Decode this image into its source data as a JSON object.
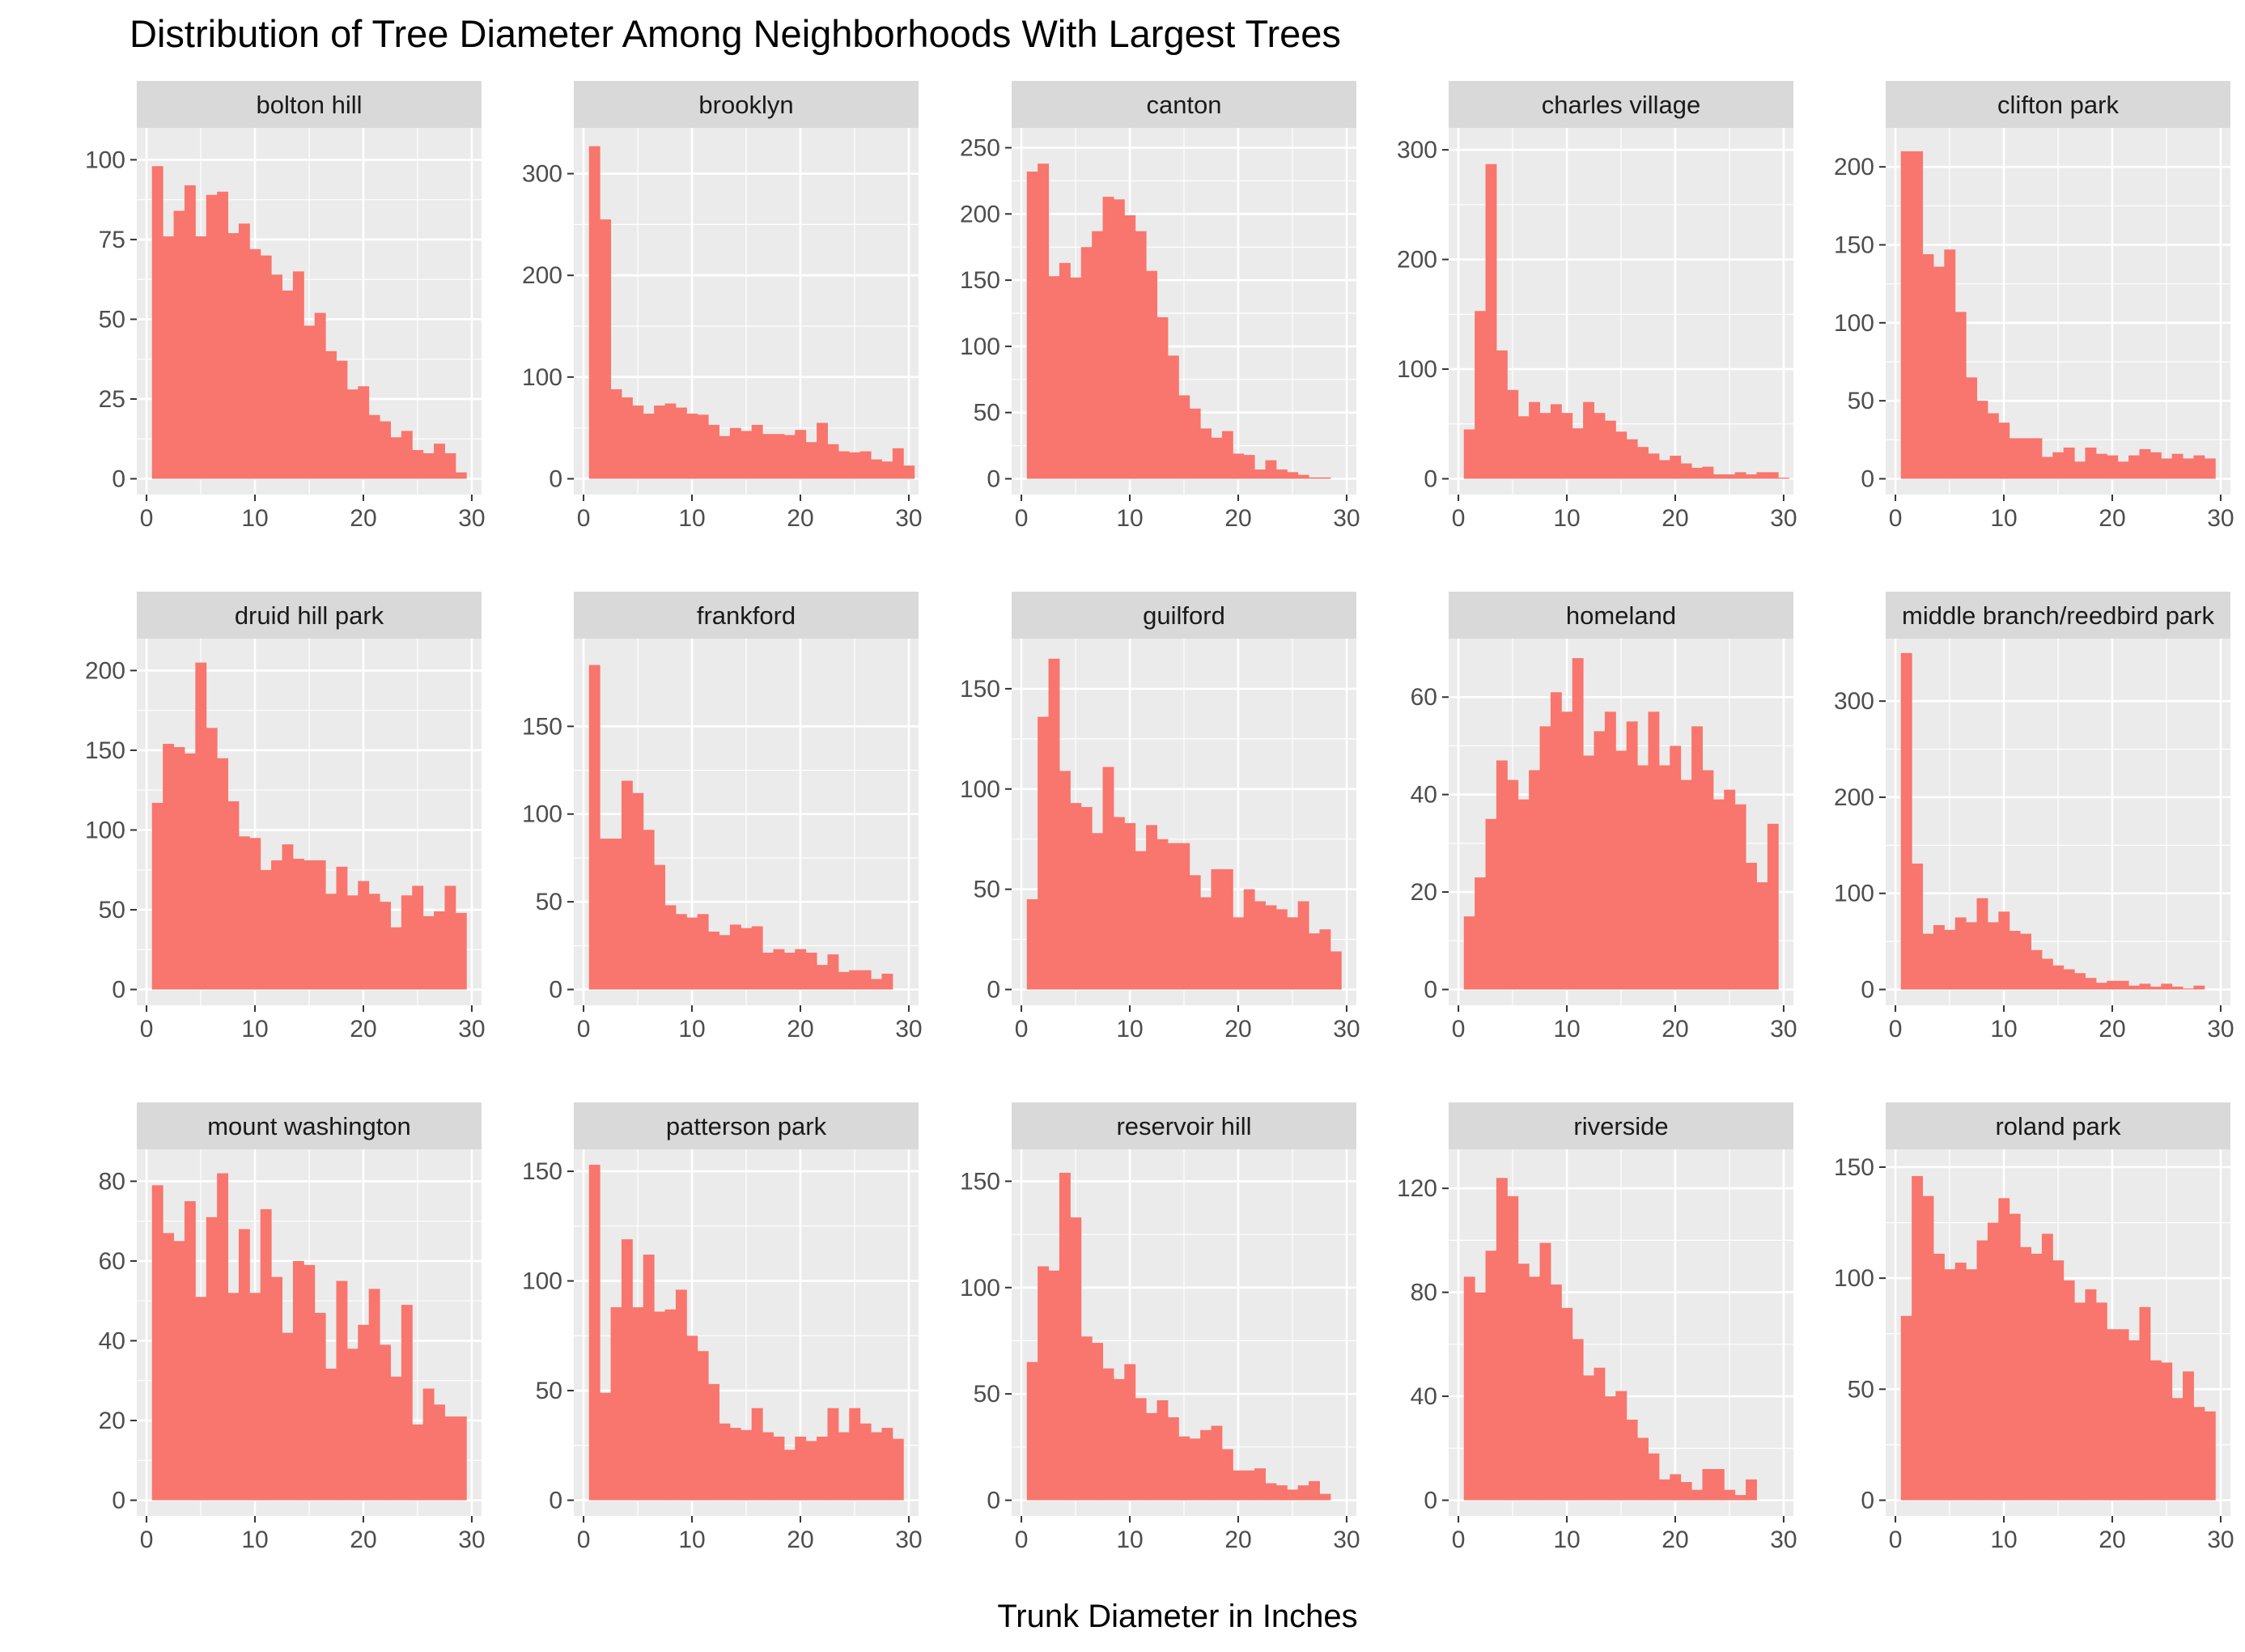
{
  "chart_data": {
    "type": "bar",
    "title": "Distribution of Tree Diameter Among Neighborhoods With Largest Trees",
    "xlabel": "Trunk Diameter in Inches",
    "ylabel": "",
    "bin_width": 1,
    "x_range": [
      0.5,
      29.5
    ],
    "x_ticks": [
      0,
      10,
      20,
      30
    ],
    "grid": true,
    "legend": "none",
    "bar_color": "#F8766D",
    "panel_background": "#EBEBEB",
    "strip_background": "#D9D9D9",
    "facets": [
      {
        "name": "bolton hill",
        "ylim": [
          0,
          110
        ],
        "y_ticks": [
          0,
          25,
          50,
          75,
          100
        ],
        "values": [
          98,
          76,
          84,
          92,
          76,
          89,
          90,
          77,
          80,
          72,
          70,
          64,
          59,
          65,
          48,
          52,
          40,
          37,
          28,
          29,
          20,
          18,
          13,
          15,
          9,
          8,
          11,
          8,
          2
        ]
      },
      {
        "name": "brooklyn",
        "ylim": [
          0,
          345
        ],
        "y_ticks": [
          0,
          100,
          200,
          300
        ],
        "values": [
          327,
          255,
          88,
          80,
          72,
          64,
          72,
          74,
          70,
          64,
          63,
          53,
          42,
          50,
          47,
          53,
          44,
          44,
          43,
          48,
          36,
          55,
          34,
          27,
          26,
          27,
          19,
          17,
          30,
          13
        ]
      },
      {
        "name": "canton",
        "ylim": [
          0,
          265
        ],
        "y_ticks": [
          0,
          50,
          100,
          150,
          200,
          250
        ],
        "values": [
          232,
          238,
          153,
          163,
          152,
          175,
          187,
          213,
          211,
          199,
          187,
          157,
          122,
          93,
          63,
          53,
          38,
          31,
          36,
          19,
          18,
          7,
          14,
          7,
          5,
          3,
          1,
          1
        ]
      },
      {
        "name": "charles village",
        "ylim": [
          0,
          320
        ],
        "y_ticks": [
          0,
          100,
          200,
          300
        ],
        "values": [
          45,
          153,
          287,
          117,
          81,
          57,
          70,
          60,
          68,
          60,
          46,
          70,
          60,
          53,
          43,
          36,
          29,
          23,
          17,
          21,
          14,
          10,
          11,
          4,
          4,
          6,
          4,
          6,
          6,
          1
        ]
      },
      {
        "name": "clifton park",
        "ylim": [
          0,
          225
        ],
        "y_ticks": [
          0,
          50,
          100,
          150,
          200
        ],
        "values": [
          210,
          210,
          144,
          136,
          147,
          107,
          65,
          50,
          42,
          36,
          26,
          26,
          26,
          14,
          17,
          20,
          11,
          20,
          16,
          15,
          11,
          15,
          19,
          17,
          13,
          16,
          13,
          15,
          13
        ]
      },
      {
        "name": "druid hill park",
        "ylim": [
          0,
          220
        ],
        "y_ticks": [
          0,
          50,
          100,
          150,
          200
        ],
        "values": [
          117,
          154,
          152,
          148,
          205,
          164,
          145,
          118,
          96,
          95,
          75,
          81,
          91,
          82,
          81,
          81,
          60,
          77,
          59,
          68,
          60,
          55,
          39,
          59,
          65,
          46,
          49,
          65,
          48
        ]
      },
      {
        "name": "frankford",
        "ylim": [
          0,
          200
        ],
        "y_ticks": [
          0,
          50,
          100,
          150
        ],
        "values": [
          185,
          86,
          86,
          119,
          112,
          91,
          71,
          48,
          43,
          41,
          43,
          33,
          31,
          37,
          35,
          36,
          21,
          23,
          21,
          23,
          21,
          14,
          20,
          10,
          11,
          11,
          6,
          9
        ]
      },
      {
        "name": "guilford",
        "ylim": [
          0,
          175
        ],
        "y_ticks": [
          0,
          50,
          100,
          150
        ],
        "values": [
          45,
          136,
          165,
          109,
          93,
          91,
          78,
          111,
          86,
          83,
          69,
          82,
          75,
          73,
          73,
          57,
          46,
          60,
          60,
          36,
          50,
          44,
          42,
          40,
          36,
          44,
          28,
          30,
          19
        ]
      },
      {
        "name": "homeland",
        "ylim": [
          0,
          72
        ],
        "y_ticks": [
          0,
          20,
          40,
          60
        ],
        "values": [
          15,
          23,
          35,
          47,
          43,
          39,
          45,
          54,
          61,
          57,
          68,
          48,
          53,
          57,
          49,
          55,
          46,
          57,
          46,
          50,
          43,
          54,
          45,
          39,
          41,
          38,
          26,
          22,
          34
        ]
      },
      {
        "name": "middle branch/reedbird park",
        "ylim": [
          0,
          365
        ],
        "y_ticks": [
          0,
          100,
          200,
          300
        ],
        "values": [
          350,
          131,
          58,
          67,
          62,
          75,
          70,
          95,
          70,
          81,
          61,
          58,
          41,
          32,
          25,
          21,
          17,
          12,
          7,
          9,
          9,
          4,
          6,
          3,
          6,
          3,
          1,
          4
        ]
      },
      {
        "name": "mount washington",
        "ylim": [
          0,
          88
        ],
        "y_ticks": [
          0,
          20,
          40,
          60,
          80
        ],
        "values": [
          79,
          67,
          65,
          75,
          51,
          71,
          82,
          52,
          68,
          52,
          73,
          56,
          42,
          60,
          59,
          47,
          33,
          55,
          38,
          44,
          53,
          39,
          31,
          49,
          19,
          28,
          24,
          21,
          21
        ]
      },
      {
        "name": "patterson park",
        "ylim": [
          0,
          160
        ],
        "y_ticks": [
          0,
          50,
          100,
          150
        ],
        "values": [
          153,
          49,
          88,
          119,
          88,
          112,
          86,
          87,
          96,
          75,
          68,
          53,
          35,
          33,
          32,
          42,
          31,
          29,
          23,
          29,
          27,
          29,
          42,
          31,
          42,
          35,
          31,
          33,
          28
        ]
      },
      {
        "name": "reservoir hill",
        "ylim": [
          0,
          165
        ],
        "y_ticks": [
          0,
          50,
          100,
          150
        ],
        "values": [
          65,
          110,
          108,
          154,
          133,
          77,
          74,
          62,
          57,
          64,
          48,
          41,
          47,
          39,
          30,
          29,
          33,
          35,
          24,
          14,
          14,
          15,
          8,
          7,
          5,
          7,
          9,
          3
        ]
      },
      {
        "name": "riverside",
        "ylim": [
          0,
          135
        ],
        "y_ticks": [
          0,
          40,
          80,
          120
        ],
        "values": [
          86,
          80,
          96,
          124,
          117,
          91,
          86,
          99,
          83,
          74,
          62,
          48,
          51,
          40,
          42,
          31,
          24,
          18,
          8,
          10,
          7,
          4,
          12,
          12,
          4,
          2,
          8
        ]
      },
      {
        "name": "roland park",
        "ylim": [
          0,
          158
        ],
        "y_ticks": [
          0,
          50,
          100,
          150
        ],
        "values": [
          83,
          146,
          137,
          111,
          104,
          107,
          104,
          117,
          125,
          136,
          129,
          114,
          111,
          120,
          108,
          99,
          89,
          95,
          89,
          77,
          77,
          72,
          87,
          63,
          62,
          46,
          58,
          42,
          40
        ]
      }
    ]
  }
}
